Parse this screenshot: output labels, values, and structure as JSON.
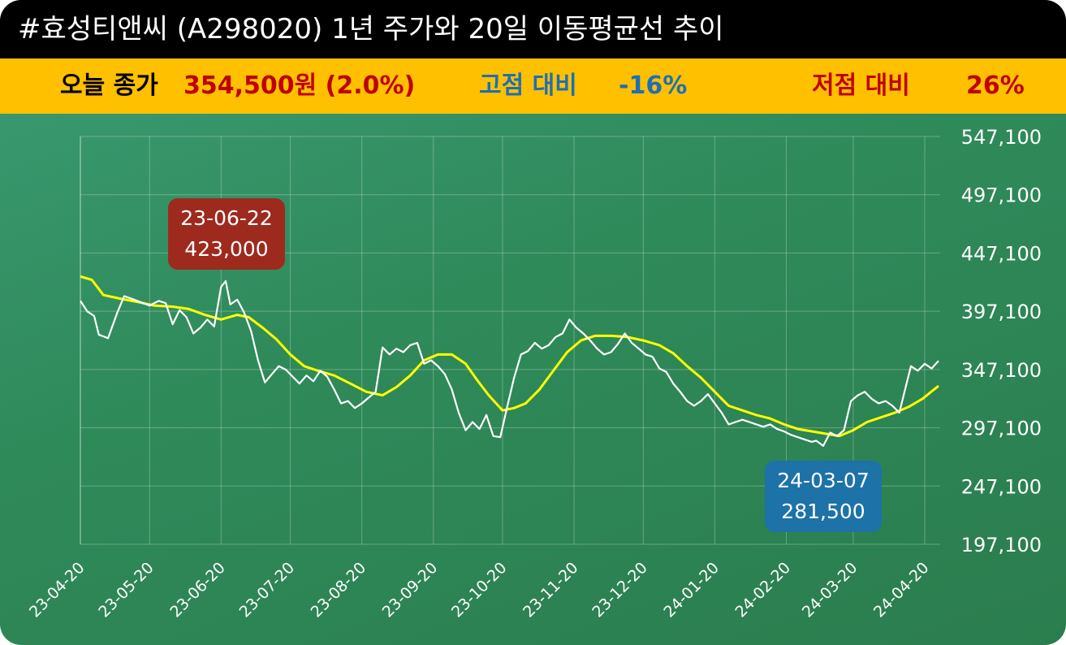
{
  "header": {
    "title": "#효성티앤씨 (A298020) 1년 주가와 20일 이동평균선 추이"
  },
  "summary": {
    "close_label": "오늘 종가",
    "close_value": "354,500원 (2.0%)",
    "high_label": "고점 대비",
    "high_value": "-16%",
    "low_label": "저점 대비",
    "low_value": "26%"
  },
  "colors": {
    "price_line": "#ffffff",
    "ma_line": "#ffff00",
    "high_box": "#9e2a1e",
    "low_box": "#1d72a8",
    "close_value": "#c00000",
    "high_text": "#1f6fb5",
    "low_text": "#c00000"
  },
  "annotations": {
    "high": {
      "date": "23-06-22",
      "value": "423,000"
    },
    "low": {
      "date": "24-03-07",
      "value": "281,500"
    }
  },
  "chart_data": {
    "type": "line",
    "ylim": [
      197100,
      547100
    ],
    "y_ticks": [
      "547,100",
      "497,100",
      "447,100",
      "397,100",
      "347,100",
      "297,100",
      "247,100",
      "197,100"
    ],
    "x_ticks": [
      "23-04-20",
      "23-05-20",
      "23-06-20",
      "23-07-20",
      "23-08-20",
      "23-09-20",
      "23-10-20",
      "23-11-20",
      "23-12-20",
      "24-01-20",
      "24-02-20",
      "24-03-20",
      "24-04-20"
    ],
    "x_range": [
      "23-04-20",
      "24-04-26"
    ],
    "grid": true,
    "series": [
      {
        "key": "price",
        "points": [
          [
            "23-04-20",
            406000
          ],
          [
            "23-04-23",
            397000
          ],
          [
            "23-04-26",
            393000
          ],
          [
            "23-04-28",
            377000
          ],
          [
            "23-05-02",
            374000
          ],
          [
            "23-05-06",
            396000
          ],
          [
            "23-05-09",
            410000
          ],
          [
            "23-05-12",
            408000
          ],
          [
            "23-05-16",
            405000
          ],
          [
            "23-05-20",
            402000
          ],
          [
            "23-05-24",
            406000
          ],
          [
            "23-05-27",
            404000
          ],
          [
            "23-05-30",
            386000
          ],
          [
            "23-06-02",
            398000
          ],
          [
            "23-06-05",
            392000
          ],
          [
            "23-06-08",
            378000
          ],
          [
            "23-06-11",
            383000
          ],
          [
            "23-06-14",
            390000
          ],
          [
            "23-06-17",
            384000
          ],
          [
            "23-06-20",
            418000
          ],
          [
            "23-06-22",
            423000
          ],
          [
            "23-06-24",
            403000
          ],
          [
            "23-06-27",
            407000
          ],
          [
            "23-06-30",
            396000
          ],
          [
            "23-07-03",
            380000
          ],
          [
            "23-07-06",
            355000
          ],
          [
            "23-07-09",
            336000
          ],
          [
            "23-07-12",
            343000
          ],
          [
            "23-07-15",
            350000
          ],
          [
            "23-07-18",
            347000
          ],
          [
            "23-07-21",
            341000
          ],
          [
            "23-07-24",
            335000
          ],
          [
            "23-07-27",
            342000
          ],
          [
            "23-07-30",
            337000
          ],
          [
            "23-08-02",
            346000
          ],
          [
            "23-08-05",
            341000
          ],
          [
            "23-08-08",
            330000
          ],
          [
            "23-08-11",
            318000
          ],
          [
            "23-08-14",
            320000
          ],
          [
            "23-08-17",
            314000
          ],
          [
            "23-08-20",
            318000
          ],
          [
            "23-08-23",
            323000
          ],
          [
            "23-08-26",
            328000
          ],
          [
            "23-08-29",
            366000
          ],
          [
            "23-09-01",
            360000
          ],
          [
            "23-09-04",
            365000
          ],
          [
            "23-09-07",
            362000
          ],
          [
            "23-09-10",
            368000
          ],
          [
            "23-09-13",
            370000
          ],
          [
            "23-09-16",
            352000
          ],
          [
            "23-09-19",
            355000
          ],
          [
            "23-09-22",
            350000
          ],
          [
            "23-09-25",
            343000
          ],
          [
            "23-09-28",
            330000
          ],
          [
            "23-10-01",
            310000
          ],
          [
            "23-10-04",
            295000
          ],
          [
            "23-10-07",
            302000
          ],
          [
            "23-10-10",
            296000
          ],
          [
            "23-10-13",
            308000
          ],
          [
            "23-10-16",
            290000
          ],
          [
            "23-10-19",
            289000
          ],
          [
            "23-10-22",
            315000
          ],
          [
            "23-10-25",
            340000
          ],
          [
            "23-10-28",
            360000
          ],
          [
            "23-10-31",
            363000
          ],
          [
            "23-11-03",
            370000
          ],
          [
            "23-11-06",
            365000
          ],
          [
            "23-11-09",
            368000
          ],
          [
            "23-11-12",
            375000
          ],
          [
            "23-11-15",
            378000
          ],
          [
            "23-11-18",
            390000
          ],
          [
            "23-11-21",
            383000
          ],
          [
            "23-11-24",
            378000
          ],
          [
            "23-11-27",
            372000
          ],
          [
            "23-11-30",
            365000
          ],
          [
            "23-12-03",
            360000
          ],
          [
            "23-12-06",
            362000
          ],
          [
            "23-12-09",
            369000
          ],
          [
            "23-12-12",
            378000
          ],
          [
            "23-12-15",
            370000
          ],
          [
            "23-12-18",
            365000
          ],
          [
            "23-12-21",
            360000
          ],
          [
            "23-12-24",
            358000
          ],
          [
            "23-12-27",
            348000
          ],
          [
            "23-12-30",
            345000
          ],
          [
            "24-01-02",
            335000
          ],
          [
            "24-01-05",
            328000
          ],
          [
            "24-01-08",
            320000
          ],
          [
            "24-01-11",
            316000
          ],
          [
            "24-01-14",
            320000
          ],
          [
            "24-01-17",
            326000
          ],
          [
            "24-01-20",
            318000
          ],
          [
            "24-01-23",
            310000
          ],
          [
            "24-01-26",
            300000
          ],
          [
            "24-01-29",
            302000
          ],
          [
            "24-02-01",
            304000
          ],
          [
            "24-02-04",
            302000
          ],
          [
            "24-02-07",
            300000
          ],
          [
            "24-02-10",
            298000
          ],
          [
            "24-02-13",
            300000
          ],
          [
            "24-02-16",
            296000
          ],
          [
            "24-02-19",
            294000
          ],
          [
            "24-02-22",
            291000
          ],
          [
            "24-02-25",
            289000
          ],
          [
            "24-02-28",
            287000
          ],
          [
            "24-03-02",
            285000
          ],
          [
            "24-03-04",
            286000
          ],
          [
            "24-03-07",
            281500
          ],
          [
            "24-03-10",
            293000
          ],
          [
            "24-03-13",
            290000
          ],
          [
            "24-03-16",
            295000
          ],
          [
            "24-03-19",
            320000
          ],
          [
            "24-03-22",
            325000
          ],
          [
            "24-03-25",
            328000
          ],
          [
            "24-03-28",
            322000
          ],
          [
            "24-03-31",
            318000
          ],
          [
            "24-04-03",
            320000
          ],
          [
            "24-04-06",
            316000
          ],
          [
            "24-04-09",
            310000
          ],
          [
            "24-04-11",
            326000
          ],
          [
            "24-04-14",
            350000
          ],
          [
            "24-04-17",
            346000
          ],
          [
            "24-04-20",
            352000
          ],
          [
            "24-04-23",
            348000
          ],
          [
            "24-04-26",
            354500
          ]
        ]
      },
      {
        "key": "ma20",
        "points": [
          [
            "23-04-20",
            427000
          ],
          [
            "23-04-25",
            424000
          ],
          [
            "23-04-30",
            411000
          ],
          [
            "23-05-07",
            408000
          ],
          [
            "23-05-15",
            405000
          ],
          [
            "23-05-22",
            402000
          ],
          [
            "23-05-30",
            401000
          ],
          [
            "23-06-06",
            399000
          ],
          [
            "23-06-13",
            394000
          ],
          [
            "23-06-20",
            390000
          ],
          [
            "23-06-27",
            394000
          ],
          [
            "23-07-02",
            392000
          ],
          [
            "23-07-08",
            383000
          ],
          [
            "23-07-14",
            373000
          ],
          [
            "23-07-20",
            360000
          ],
          [
            "23-07-26",
            350000
          ],
          [
            "23-08-01",
            346000
          ],
          [
            "23-08-08",
            342000
          ],
          [
            "23-08-15",
            335000
          ],
          [
            "23-08-22",
            328000
          ],
          [
            "23-08-29",
            325000
          ],
          [
            "23-09-04",
            332000
          ],
          [
            "23-09-10",
            342000
          ],
          [
            "23-09-16",
            355000
          ],
          [
            "23-09-22",
            360000
          ],
          [
            "23-09-28",
            360000
          ],
          [
            "23-10-04",
            352000
          ],
          [
            "23-10-09",
            338000
          ],
          [
            "23-10-14",
            325000
          ],
          [
            "23-10-20",
            312000
          ],
          [
            "23-10-25",
            314000
          ],
          [
            "23-10-30",
            318000
          ],
          [
            "23-11-05",
            330000
          ],
          [
            "23-11-11",
            346000
          ],
          [
            "23-11-17",
            362000
          ],
          [
            "23-11-23",
            372000
          ],
          [
            "23-11-29",
            376000
          ],
          [
            "23-12-06",
            376000
          ],
          [
            "23-12-13",
            375000
          ],
          [
            "23-12-20",
            372000
          ],
          [
            "23-12-27",
            368000
          ],
          [
            "24-01-02",
            361000
          ],
          [
            "24-01-08",
            350000
          ],
          [
            "24-01-14",
            340000
          ],
          [
            "24-01-20",
            328000
          ],
          [
            "24-01-26",
            316000
          ],
          [
            "24-02-01",
            312000
          ],
          [
            "24-02-07",
            308000
          ],
          [
            "24-02-13",
            305000
          ],
          [
            "24-02-19",
            300000
          ],
          [
            "24-02-25",
            296000
          ],
          [
            "24-03-02",
            294000
          ],
          [
            "24-03-08",
            292000
          ],
          [
            "24-03-14",
            290000
          ],
          [
            "24-03-20",
            295000
          ],
          [
            "24-03-26",
            302000
          ],
          [
            "24-04-01",
            306000
          ],
          [
            "24-04-07",
            310000
          ],
          [
            "24-04-13",
            315000
          ],
          [
            "24-04-19",
            322000
          ],
          [
            "24-04-26",
            333000
          ]
        ]
      }
    ]
  }
}
